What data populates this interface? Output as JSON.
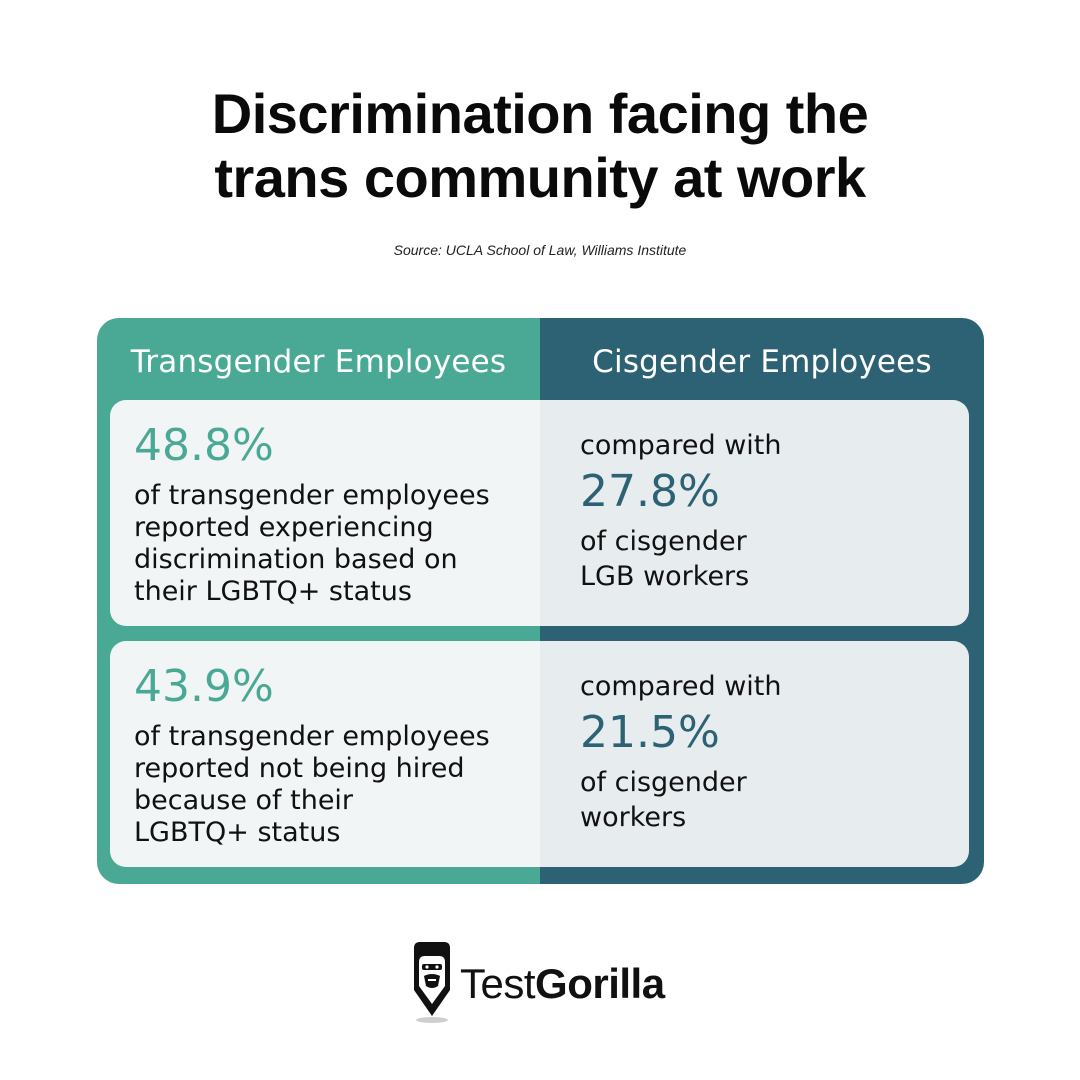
{
  "title": {
    "line1": "Discrimination facing the",
    "line2": "trans community at work"
  },
  "source": "Source: UCLA School of Law, Williams Institute",
  "columns": {
    "left_header": "Transgender Employees",
    "right_header": "Cisgender Employees"
  },
  "rows": [
    {
      "trans_stat": "48.8%",
      "trans_desc_lines": [
        "of transgender employees",
        "reported experiencing",
        "discrimination based on",
        "their LGBTQ+ status"
      ],
      "compare_label": "compared with",
      "cis_stat": "27.8%",
      "cis_desc_lines": [
        "of cisgender",
        "LGB workers"
      ]
    },
    {
      "trans_stat": "43.9%",
      "trans_desc_lines": [
        "of transgender employees",
        "reported not being hired",
        "because of their",
        "LGBTQ+ status"
      ],
      "compare_label": "compared with",
      "cis_stat": "21.5%",
      "cis_desc_lines": [
        "of cisgender",
        "workers"
      ]
    }
  ],
  "logo": {
    "text_light": "Test",
    "text_bold": "Gorilla",
    "icon": "gorilla-pencil-icon"
  },
  "colors": {
    "trans_green": "#4aa995",
    "cis_teal": "#2d6275"
  }
}
